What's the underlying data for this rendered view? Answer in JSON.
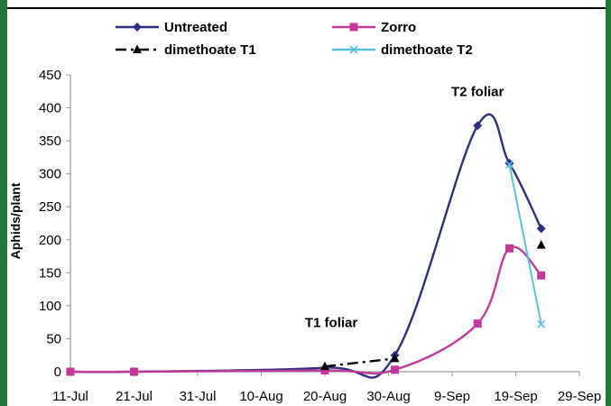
{
  "chart_data": {
    "type": "line",
    "title": "",
    "xlabel": "",
    "ylabel": "Aphids/plant",
    "x_ticks": [
      "11-Jul",
      "21-Jul",
      "31-Jul",
      "10-Aug",
      "20-Aug",
      "30-Aug",
      "9-Sep",
      "19-Sep",
      "29-Sep"
    ],
    "xlim": [
      "11-Jul",
      "29-Sep"
    ],
    "ylim": [
      0,
      450
    ],
    "y_ticks": [
      0,
      50,
      100,
      150,
      200,
      250,
      300,
      350,
      400,
      450
    ],
    "grid": false,
    "legend_position": "top",
    "series": [
      {
        "name": "Untreated",
        "color": "#2e2f7f",
        "marker": "diamond",
        "line_style": "solid",
        "points": [
          [
            "11-Jul",
            0
          ],
          [
            "21-Jul",
            0
          ],
          [
            "20-Aug",
            6
          ],
          [
            "31-Aug",
            25
          ],
          [
            "13-Sep",
            373
          ],
          [
            "18-Sep",
            316
          ],
          [
            "23-Sep",
            217
          ]
        ]
      },
      {
        "name": "Zorro",
        "color": "#c2399b",
        "marker": "square",
        "line_style": "solid",
        "points": [
          [
            "11-Jul",
            0
          ],
          [
            "21-Jul",
            0
          ],
          [
            "20-Aug",
            2
          ],
          [
            "31-Aug",
            3
          ],
          [
            "13-Sep",
            73
          ],
          [
            "18-Sep",
            187
          ],
          [
            "23-Sep",
            146
          ]
        ]
      },
      {
        "name": "dimethoate T1",
        "color": "#000000",
        "marker": "triangle",
        "line_style": "dashdot",
        "points": [
          [
            "20-Aug",
            8
          ],
          [
            "31-Aug",
            20
          ],
          [
            "23-Sep",
            192
          ]
        ]
      },
      {
        "name": "dimethoate T2",
        "color": "#5bc2dd",
        "marker": "x",
        "line_style": "solid",
        "points": [
          [
            "18-Sep",
            314
          ],
          [
            "23-Sep",
            72
          ]
        ]
      }
    ],
    "annotations": [
      {
        "text": "T1 foliar",
        "x": "21-Aug",
        "y": 68
      },
      {
        "text": "T2 foliar",
        "x": "13-Sep",
        "y": 418
      }
    ]
  }
}
